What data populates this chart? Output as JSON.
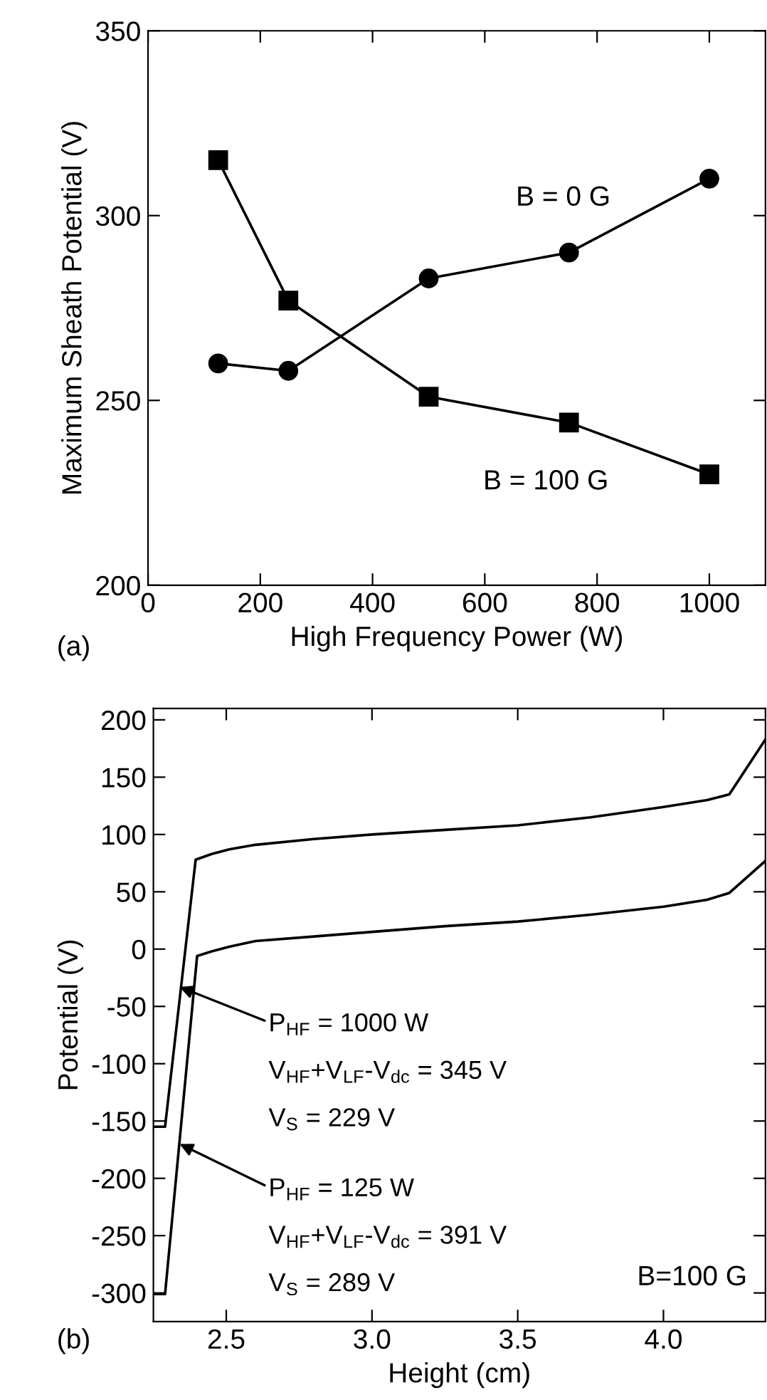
{
  "chart_data": [
    {
      "type": "line",
      "xlabel": "High Frequency Power (W)",
      "ylabel": "Maximum Sheath Potential (V)",
      "x": [
        125,
        250,
        500,
        750,
        1000
      ],
      "series": [
        {
          "name": "B = 0 G",
          "color": "#000000",
          "marker": "circle",
          "values": [
            260,
            258,
            283,
            290,
            310
          ]
        },
        {
          "name": "B = 100 G",
          "color": "#000000",
          "marker": "square",
          "values": [
            315,
            277,
            251,
            244,
            230
          ]
        }
      ],
      "xlim": [
        0,
        1100
      ],
      "xticks": [
        0,
        200,
        400,
        600,
        800,
        1000
      ],
      "ylim": [
        200,
        350
      ],
      "yticks": [
        200,
        250,
        300,
        350
      ],
      "line_style": "solid",
      "grid": false,
      "legend": false,
      "annotations": [
        "(a)"
      ]
    },
    {
      "type": "line",
      "xlabel": "Height (cm)",
      "ylabel": "Potential (V)",
      "series": [
        {
          "color": "#000000",
          "x": [
            2.25,
            2.29,
            2.395,
            2.45,
            2.51,
            2.6,
            2.8,
            3.0,
            3.25,
            3.5,
            3.75,
            4.0,
            4.15,
            4.226,
            4.35
          ],
          "values": [
            -155,
            -155,
            78,
            83,
            87,
            91,
            96,
            100,
            104,
            108,
            115,
            124,
            130,
            135,
            183
          ]
        },
        {
          "color": "#000000",
          "x": [
            2.25,
            2.29,
            2.4,
            2.45,
            2.51,
            2.6,
            2.8,
            3.0,
            3.25,
            3.5,
            3.75,
            4.0,
            4.15,
            4.226,
            4.35
          ],
          "values": [
            -301,
            -301,
            -6,
            -2,
            2,
            7,
            11,
            15,
            20,
            24,
            30,
            37,
            43,
            49,
            77
          ]
        }
      ],
      "xlim": [
        2.25,
        4.35
      ],
      "xticks": [
        2.5,
        {
          "value": 3,
          "label": "3.0"
        },
        3.5,
        {
          "value": 4,
          "label": "4.0"
        }
      ],
      "ylim": [
        -325,
        210
      ],
      "yticks": [
        -300,
        -250,
        -200,
        -150,
        -100,
        -50,
        0,
        50,
        100,
        150,
        200
      ],
      "marker": "none",
      "line_style": "solid",
      "grid": false,
      "legend": false,
      "annotations": [
        "(b)",
        "B=100 G",
        {
          "text": "P$_{HF}$ = 1000 W",
          "x": 2.34,
          "y": -33
        },
        "V$_{HF}$+V$_{LF}$-V$_{dc}$ = 345 V",
        "V$_{S}$ = 229 V",
        {
          "text": "P$_{HF}$ = 125 W",
          "x": 2.34,
          "y": -170
        },
        "V$_{HF}$+V$_{LF}$-V$_{dc}$ = 391 V",
        "V$_{S}$ = 289 V"
      ]
    }
  ]
}
